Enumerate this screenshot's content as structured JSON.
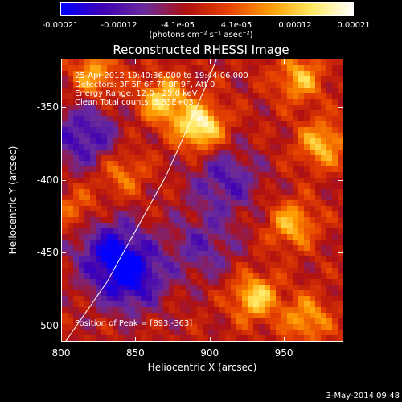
{
  "chart_data": {
    "type": "heatmap",
    "title": "Reconstructed RHESSI Image",
    "xlabel": "Heliocentric X (arcsec)",
    "ylabel": "Heliocentric Y (arcsec)",
    "xlim": [
      800,
      990
    ],
    "ylim": [
      -511,
      -317
    ],
    "xticks": [
      "800",
      "850",
      "900",
      "950"
    ],
    "yticks": [
      "-350",
      "-400",
      "-450",
      "-500"
    ],
    "colorbar": {
      "ticks": [
        "-0.00021",
        "-0.00012",
        "-4.1e-05",
        "4.1e-05",
        "0.00012",
        "0.00021"
      ],
      "label": "(photons cm⁻² s⁻¹ asec⁻²)",
      "range": [
        -0.00021,
        0.00021
      ],
      "colors": [
        "#0000ff",
        "#3f00b5",
        "#6a2a9c",
        "#b01010",
        "#e64000",
        "#ff9a00",
        "#ffe860",
        "#ffffff"
      ]
    },
    "annotations": [
      "25-Apr-2012 19:40:36.000 to 19:44:06.000",
      "Detectors: 3F 5F 6F 7F 8F 9F, Att 0",
      "Energy Range: 12.0 - 25.0 keV",
      "Clean    Total counts: 3.33E+03"
    ],
    "peak_label": "Position of Peak = [893,-363]",
    "peak_position": [
      893,
      -363
    ],
    "limb_curve": [
      [
        802,
        -511
      ],
      [
        830,
        -470
      ],
      [
        852,
        -430
      ],
      [
        870,
        -397
      ],
      [
        885,
        -363
      ],
      [
        897,
        -335
      ],
      [
        904,
        -317
      ]
    ],
    "hot_spots": [
      {
        "x": 893,
        "y": -363,
        "peak": 0.00021
      },
      {
        "x": 868,
        "y": -345,
        "peak": 0.00016
      },
      {
        "x": 822,
        "y": -328,
        "peak": 0.00012
      },
      {
        "x": 960,
        "y": -330,
        "peak": 0.00013
      },
      {
        "x": 975,
        "y": -375,
        "peak": 0.00014
      },
      {
        "x": 955,
        "y": -430,
        "peak": 0.00013
      },
      {
        "x": 930,
        "y": -480,
        "peak": 0.00016
      },
      {
        "x": 965,
        "y": -495,
        "peak": 0.00012
      },
      {
        "x": 840,
        "y": -395,
        "peak": 9e-05
      },
      {
        "x": 810,
        "y": -420,
        "peak": 8e-05
      }
    ],
    "cold_spots": [
      {
        "x": 845,
        "y": -465,
        "peak": -0.00018
      },
      {
        "x": 815,
        "y": -370,
        "peak": -0.00012
      },
      {
        "x": 910,
        "y": -400,
        "peak": -0.0001
      },
      {
        "x": 830,
        "y": -445,
        "peak": -0.00011
      },
      {
        "x": 895,
        "y": -445,
        "peak": -8e-05
      }
    ]
  },
  "footer": "3-May-2014 09:48"
}
